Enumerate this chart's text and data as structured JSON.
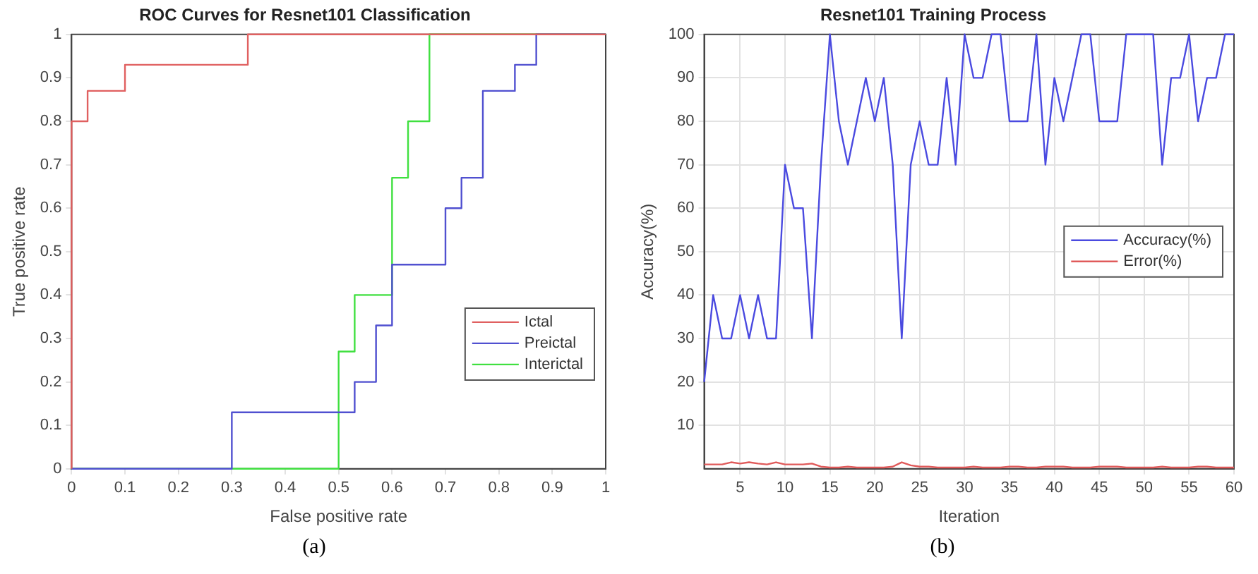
{
  "chart_data": [
    {
      "type": "step",
      "title": "ROC Curves for Resnet101 Classification",
      "xlabel": "False positive rate",
      "ylabel": "True positive rate",
      "annotations": [
        "(a)"
      ],
      "xlim": [
        0,
        1
      ],
      "ylim": [
        0,
        1
      ],
      "xticks": [
        0,
        0.1,
        0.2,
        0.3,
        0.4,
        0.5,
        0.6,
        0.7,
        0.8,
        0.9,
        1
      ],
      "yticks": [
        0,
        0.1,
        0.2,
        0.3,
        0.4,
        0.5,
        0.6,
        0.7,
        0.8,
        0.9,
        1
      ],
      "grid": false,
      "legend": "bottom right",
      "series": [
        {
          "name": "Ictal",
          "color": "#e06060",
          "x": [
            0,
            0,
            0.03,
            0.1,
            0.33,
            1
          ],
          "values": [
            0,
            0.8,
            0.87,
            0.93,
            1,
            1
          ]
        },
        {
          "name": "Preictal",
          "color": "#5050d0",
          "x": [
            0,
            0.3,
            0.53,
            0.57,
            0.6,
            0.7,
            0.73,
            0.77,
            0.83,
            0.87,
            1
          ],
          "values": [
            0,
            0.13,
            0.2,
            0.33,
            0.47,
            0.6,
            0.67,
            0.87,
            0.93,
            1,
            1
          ]
        },
        {
          "name": "Interictal",
          "color": "#40e040",
          "x": [
            0,
            0.5,
            0.53,
            0.6,
            0.63,
            0.67,
            1
          ],
          "values": [
            0,
            0.27,
            0.4,
            0.67,
            0.8,
            1,
            1
          ]
        }
      ]
    },
    {
      "type": "line",
      "title": "Resnet101 Training Process",
      "xlabel": "Iteration",
      "ylabel": "Accuracy(%)",
      "annotations": [
        "(b)"
      ],
      "xlim": [
        1,
        60
      ],
      "ylim": [
        0,
        100
      ],
      "xticks": [
        5,
        10,
        15,
        20,
        25,
        30,
        35,
        40,
        45,
        50,
        55,
        60
      ],
      "yticks": [
        10,
        20,
        30,
        40,
        50,
        60,
        70,
        80,
        90,
        100
      ],
      "grid": true,
      "legend": "right",
      "x": [
        1,
        2,
        3,
        4,
        5,
        6,
        7,
        8,
        9,
        10,
        11,
        12,
        13,
        14,
        15,
        16,
        17,
        18,
        19,
        20,
        21,
        22,
        23,
        24,
        25,
        26,
        27,
        28,
        29,
        30,
        31,
        32,
        33,
        34,
        35,
        36,
        37,
        38,
        39,
        40,
        41,
        42,
        43,
        44,
        45,
        46,
        47,
        48,
        49,
        50,
        51,
        52,
        53,
        54,
        55,
        56,
        57,
        58,
        59,
        60
      ],
      "series": [
        {
          "name": "Accuracy(%)",
          "color": "#4a4ae0",
          "values": [
            20,
            40,
            30,
            30,
            40,
            30,
            40,
            30,
            30,
            70,
            60,
            60,
            30,
            70,
            100,
            80,
            70,
            80,
            90,
            80,
            90,
            70,
            30,
            70,
            80,
            70,
            70,
            90,
            70,
            100,
            90,
            90,
            100,
            100,
            80,
            80,
            80,
            100,
            70,
            90,
            80,
            90,
            100,
            100,
            80,
            80,
            80,
            100,
            100,
            100,
            100,
            70,
            90,
            90,
            100,
            80,
            90,
            90,
            100,
            100
          ]
        },
        {
          "name": "Error(%)",
          "color": "#e05a5a",
          "values": [
            1,
            1,
            1,
            1.5,
            1.2,
            1.5,
            1.2,
            1,
            1.5,
            1,
            1,
            1,
            1.2,
            0.5,
            0.3,
            0.3,
            0.5,
            0.3,
            0.3,
            0.3,
            0.3,
            0.5,
            1.5,
            0.8,
            0.5,
            0.5,
            0.3,
            0.3,
            0.3,
            0.3,
            0.5,
            0.3,
            0.3,
            0.3,
            0.5,
            0.5,
            0.3,
            0.3,
            0.5,
            0.5,
            0.5,
            0.3,
            0.3,
            0.3,
            0.5,
            0.5,
            0.5,
            0.3,
            0.3,
            0.3,
            0.3,
            0.5,
            0.3,
            0.3,
            0.3,
            0.5,
            0.5,
            0.3,
            0.3,
            0.3
          ]
        }
      ]
    }
  ]
}
